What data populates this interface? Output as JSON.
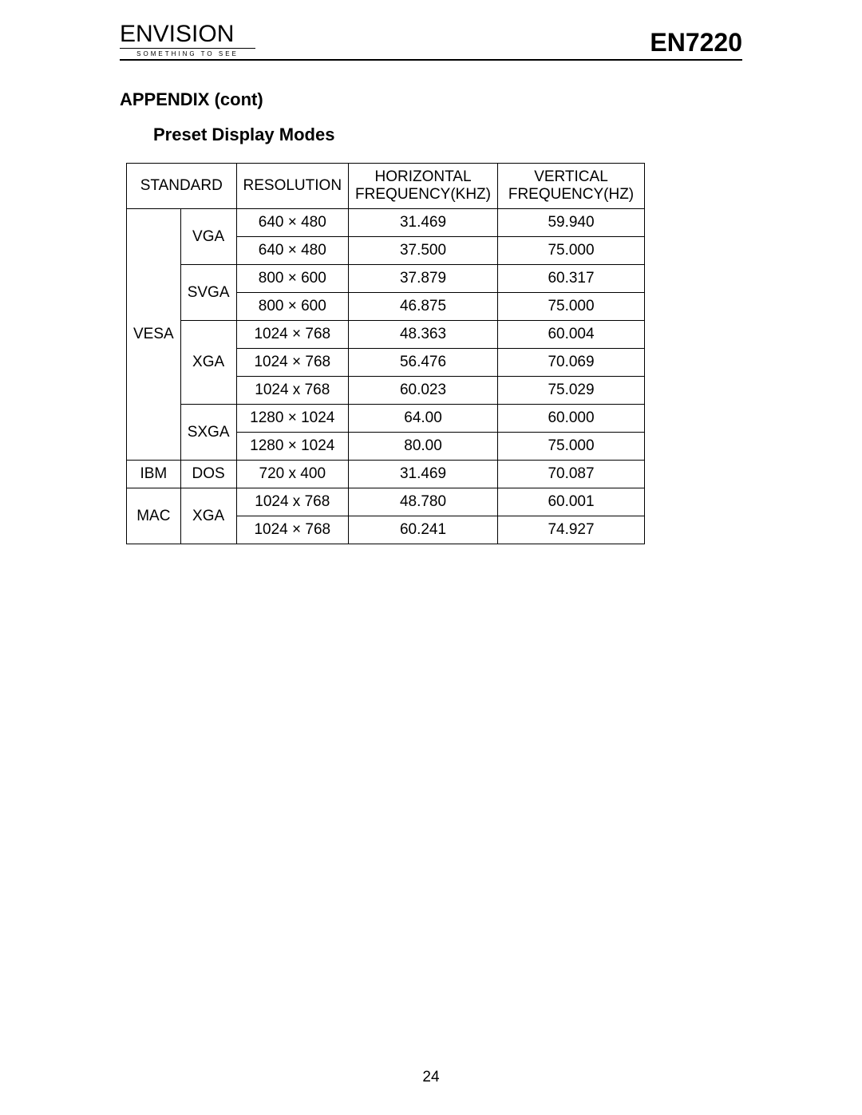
{
  "header": {
    "logo_text": "ENVISION",
    "logo_tagline": "SOMETHING TO SEE",
    "model": "EN7220"
  },
  "titles": {
    "appendix": "APPENDIX (cont)",
    "subtitle": "Preset Display Modes"
  },
  "table": {
    "columns": [
      "STANDARD",
      "RESOLUTION",
      "HORIZONTAL FREQUENCY(KHZ)",
      "VERTICAL FREQUENCY(HZ)"
    ],
    "header_standard": "STANDARD",
    "header_resolution": "RESOLUTION",
    "header_hfreq_l1": "HORIZONTAL",
    "header_hfreq_l2": "FREQUENCY(KHZ)",
    "header_vfreq_l1": "VERTICAL",
    "header_vfreq_l2": "FREQUENCY(HZ)",
    "groups": [
      {
        "std1": "VESA",
        "substds": [
          {
            "name": "VGA",
            "rows": [
              {
                "res": "640 × 480",
                "hf": "31.469",
                "vf": "59.940"
              },
              {
                "res": "640 × 480",
                "hf": "37.500",
                "vf": "75.000"
              }
            ]
          },
          {
            "name": "SVGA",
            "rows": [
              {
                "res": "800 × 600",
                "hf": "37.879",
                "vf": "60.317"
              },
              {
                "res": "800 × 600",
                "hf": "46.875",
                "vf": "75.000"
              }
            ]
          },
          {
            "name": "XGA",
            "rows": [
              {
                "res": "1024 × 768",
                "hf": "48.363",
                "vf": "60.004"
              },
              {
                "res": "1024 × 768",
                "hf": "56.476",
                "vf": "70.069"
              },
              {
                "res": "1024 x 768",
                "hf": "60.023",
                "vf": "75.029"
              }
            ]
          },
          {
            "name": "SXGA",
            "rows": [
              {
                "res": "1280 × 1024",
                "hf": "64.00",
                "vf": "60.000"
              },
              {
                "res": "1280 × 1024",
                "hf": "80.00",
                "vf": "75.000"
              }
            ]
          }
        ]
      },
      {
        "std1": "IBM",
        "substds": [
          {
            "name": "DOS",
            "rows": [
              {
                "res": "720 x 400",
                "hf": "31.469",
                "vf": "70.087"
              }
            ]
          }
        ]
      },
      {
        "std1": "MAC",
        "substds": [
          {
            "name": "XGA",
            "rows": [
              {
                "res": "1024 x 768",
                "hf": "48.780",
                "vf": "60.001"
              },
              {
                "res": "1024 × 768",
                "hf": "60.241",
                "vf": "74.927"
              }
            ]
          }
        ]
      }
    ]
  },
  "page_number": "24",
  "style": {
    "font_body_pt": 19,
    "font_title_pt": 22,
    "font_model_pt": 32,
    "border_color": "#000000",
    "background": "#ffffff"
  }
}
